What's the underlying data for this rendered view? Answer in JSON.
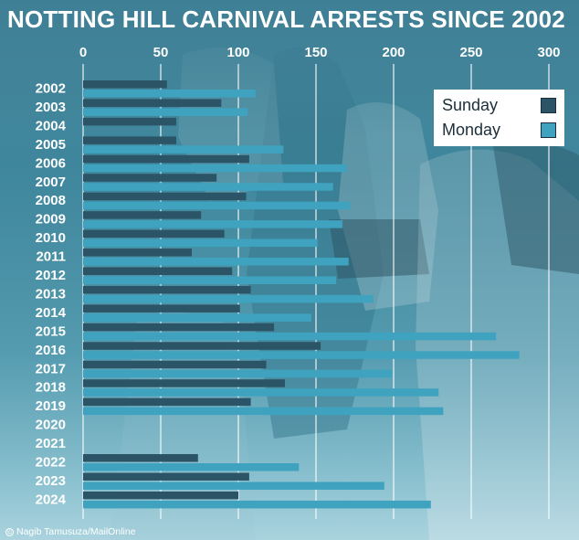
{
  "title": "NOTTING HILL CARNIVAL ARRESTS SINCE 2002",
  "credit": "Nagib Tamusuza/MailOnline",
  "credit_icon": "copyright-icon",
  "colors": {
    "sunday": "#2b5566",
    "monday": "#3fa3bf",
    "gridline": "#ffffff",
    "text": "#ffffff"
  },
  "legend": {
    "position": "top-right",
    "items": [
      {
        "label": "Sunday",
        "color": "#2b5566"
      },
      {
        "label": "Monday",
        "color": "#3fa3bf"
      }
    ]
  },
  "chart_data": {
    "type": "bar",
    "orientation": "horizontal",
    "title": "NOTTING HILL CARNIVAL ARRESTS SINCE 2002",
    "xlim": [
      0,
      300
    ],
    "x_ticks": [
      0,
      50,
      100,
      150,
      200,
      250,
      300
    ],
    "x_axis_position": "top",
    "grid": true,
    "legend_placement": "top-right",
    "categories": [
      "2002",
      "2003",
      "2004",
      "2005",
      "2006",
      "2007",
      "2008",
      "2009",
      "2010",
      "2011",
      "2012",
      "2013",
      "2014",
      "2015",
      "2016",
      "2017",
      "2018",
      "2019",
      "2020",
      "2021",
      "2022",
      "2023",
      "2024"
    ],
    "series": [
      {
        "name": "Sunday",
        "color": "#2b5566",
        "values": [
          54,
          89,
          60,
          60,
          107,
          86,
          105,
          76,
          91,
          70,
          96,
          108,
          101,
          123,
          153,
          118,
          130,
          108,
          null,
          null,
          74,
          107,
          100
        ]
      },
      {
        "name": "Monday",
        "color": "#3fa3bf",
        "values": [
          111,
          106,
          null,
          129,
          170,
          161,
          172,
          167,
          151,
          171,
          163,
          187,
          147,
          266,
          281,
          199,
          229,
          232,
          null,
          null,
          139,
          194,
          224
        ]
      }
    ]
  }
}
